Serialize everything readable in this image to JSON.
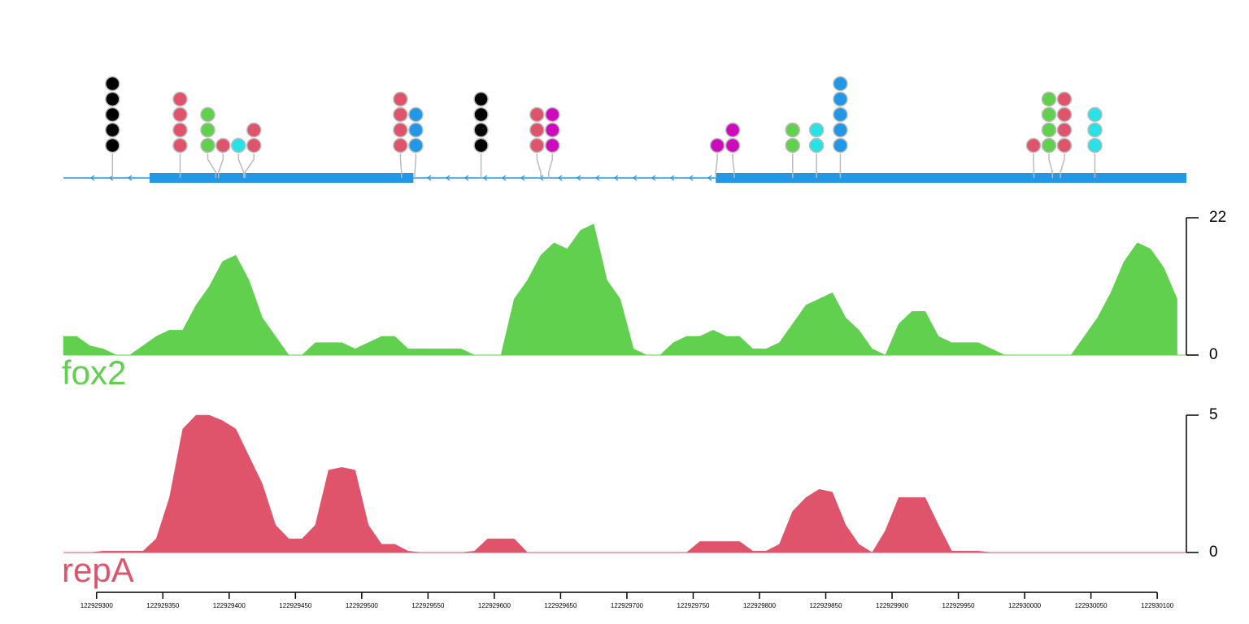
{
  "chart_data": [
    {
      "type": "lollipop",
      "xlim": [
        122929275,
        122930122
      ],
      "gene": {
        "strand": "-",
        "color": "#2297e6",
        "exons": [
          [
            122929340,
            122929539
          ],
          [
            122929767,
            122930122
          ]
        ]
      },
      "sites": [
        {
          "x": 122929312,
          "count": 5,
          "color": "#000000"
        },
        {
          "x": 122929363,
          "count": 4,
          "color": "#df536b"
        },
        {
          "x": 122929390,
          "count": 3,
          "color": "#61d04f"
        },
        {
          "x": 122929392,
          "count": 1,
          "color": "#df536b"
        },
        {
          "x": 122929411,
          "count": 1,
          "color": "#28e2e5"
        },
        {
          "x": 122929412,
          "count": 2,
          "color": "#df536b"
        },
        {
          "x": 122929530,
          "count": 4,
          "color": "#df536b"
        },
        {
          "x": 122929540,
          "count": 3,
          "color": "#2297e6"
        },
        {
          "x": 122929590,
          "count": 4,
          "color": "#000000"
        },
        {
          "x": 122929635,
          "count": 3,
          "color": "#df536b"
        },
        {
          "x": 122929641,
          "count": 3,
          "color": "#cd0bbc"
        },
        {
          "x": 122929767,
          "count": 1,
          "color": "#cd0bbc"
        },
        {
          "x": 122929781,
          "count": 2,
          "color": "#cd0bbc"
        },
        {
          "x": 122929825,
          "count": 2,
          "color": "#61d04f"
        },
        {
          "x": 122929843,
          "count": 2,
          "color": "#28e2e5"
        },
        {
          "x": 122929861,
          "count": 5,
          "color": "#2297e6"
        },
        {
          "x": 122930007,
          "count": 1,
          "color": "#df536b"
        },
        {
          "x": 122930021,
          "count": 4,
          "color": "#61d04f"
        },
        {
          "x": 122930027,
          "count": 4,
          "color": "#df536b"
        },
        {
          "x": 122930053,
          "count": 3,
          "color": "#28e2e5"
        }
      ]
    },
    {
      "type": "area",
      "xlim": [
        122929275,
        122930122
      ],
      "xticks": [
        122929300,
        122929350,
        122929400,
        122929450,
        122929500,
        122929550,
        122929600,
        122929650,
        122929700,
        122929750,
        122929800,
        122929850,
        122929900,
        122929950,
        122930000,
        122930050,
        122930100
      ],
      "x": [
        122929275,
        122929285,
        122929295,
        122929305,
        122929315,
        122929325,
        122929335,
        122929345,
        122929355,
        122929365,
        122929375,
        122929385,
        122929395,
        122929405,
        122929415,
        122929425,
        122929435,
        122929445,
        122929455,
        122929465,
        122929475,
        122929485,
        122929495,
        122929505,
        122929515,
        122929525,
        122929535,
        122929545,
        122929555,
        122929565,
        122929575,
        122929585,
        122929595,
        122929605,
        122929615,
        122929625,
        122929635,
        122929645,
        122929655,
        122929665,
        122929675,
        122929685,
        122929695,
        122929705,
        122929715,
        122929725,
        122929735,
        122929745,
        122929755,
        122929765,
        122929775,
        122929785,
        122929795,
        122929805,
        122929815,
        122929825,
        122929835,
        122929845,
        122929855,
        122929865,
        122929875,
        122929885,
        122929895,
        122929905,
        122929915,
        122929925,
        122929935,
        122929945,
        122929955,
        122929965,
        122929975,
        122929985,
        122929995,
        122930005,
        122930015,
        122930025,
        122930035,
        122930045,
        122930055,
        122930065,
        122930075,
        122930085,
        122930095,
        122930105,
        122930115
      ],
      "series": [
        {
          "name": "fox2",
          "color": "#61d04f",
          "ylim": [
            0,
            22
          ],
          "yticks": [
            0,
            22
          ],
          "values": [
            3,
            3,
            1.5,
            1,
            0,
            0,
            1.5,
            3,
            4,
            4,
            8,
            11,
            15,
            16,
            12,
            6,
            3,
            0,
            0,
            2,
            2,
            2,
            1,
            2,
            3,
            3,
            1,
            1,
            1,
            1,
            1,
            0,
            0,
            0,
            9,
            12,
            16,
            18,
            17,
            20,
            21,
            12,
            9,
            1,
            0,
            0,
            2,
            3,
            3,
            4,
            3,
            3,
            1,
            1,
            2,
            5,
            8,
            9,
            10,
            6,
            4,
            1,
            0,
            5,
            7,
            7,
            3,
            2,
            2,
            2,
            1,
            0,
            0,
            0,
            0,
            0,
            0,
            3,
            6,
            10,
            15,
            18,
            17,
            14,
            9
          ]
        },
        {
          "name": "repA",
          "color": "#df536b",
          "ylim": [
            0,
            5
          ],
          "yticks": [
            0,
            5
          ],
          "values": [
            0,
            0,
            0,
            0.05,
            0.05,
            0.05,
            0.05,
            0.5,
            2,
            4.5,
            5,
            5,
            4.8,
            4.5,
            3.5,
            2.5,
            1,
            0.5,
            0.5,
            1,
            3,
            3.1,
            3,
            1,
            0.3,
            0.3,
            0.05,
            0,
            0,
            0,
            0,
            0.05,
            0.5,
            0.5,
            0.5,
            0,
            0,
            0,
            0,
            0,
            0,
            0,
            0,
            0,
            0,
            0,
            0,
            0,
            0.4,
            0.4,
            0.4,
            0.4,
            0.05,
            0.05,
            0.3,
            1.5,
            2,
            2.3,
            2.2,
            1,
            0.3,
            0,
            0.8,
            2,
            2,
            2,
            1,
            0.05,
            0.05,
            0.05,
            0,
            0,
            0,
            0,
            0,
            0,
            0,
            0,
            0,
            0,
            0,
            0,
            0,
            0,
            0
          ]
        }
      ]
    }
  ]
}
